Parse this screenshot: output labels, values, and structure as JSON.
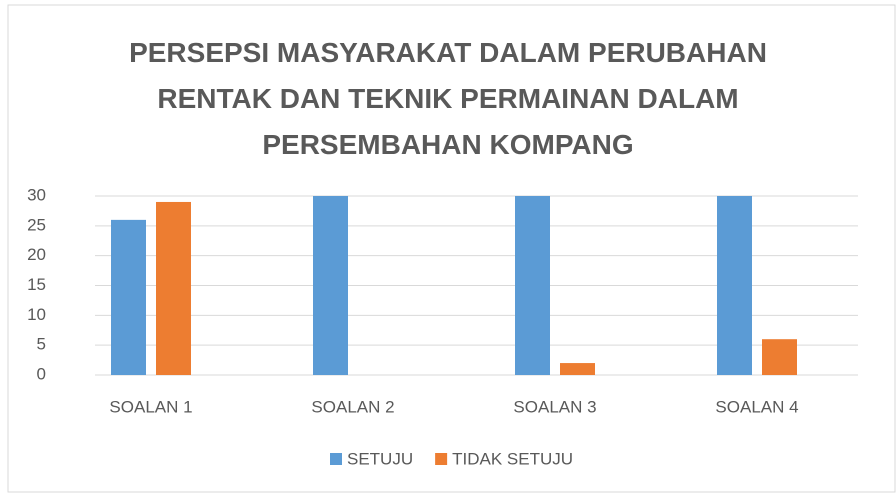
{
  "chart_data": {
    "type": "bar",
    "title": "PERSEPSI MASYARAKAT DALAM PERUBAHAN RENTAK DAN TEKNIK PERMAINAN DALAM PERSEMBAHAN KOMPANG",
    "categories": [
      "SOALAN 1",
      "SOALAN 2",
      "SOALAN 3",
      "SOALAN 4"
    ],
    "series": [
      {
        "name": "SETUJU",
        "color": "#5b9bd5",
        "values": [
          26,
          30,
          30,
          30
        ]
      },
      {
        "name": "TIDAK SETUJU",
        "color": "#ed7d31",
        "values": [
          29,
          0,
          2,
          6
        ]
      }
    ],
    "ylim": [
      0,
      30
    ],
    "yticks": [
      0,
      5,
      10,
      15,
      20,
      25,
      30
    ],
    "grid": true,
    "legend": "bottom"
  }
}
